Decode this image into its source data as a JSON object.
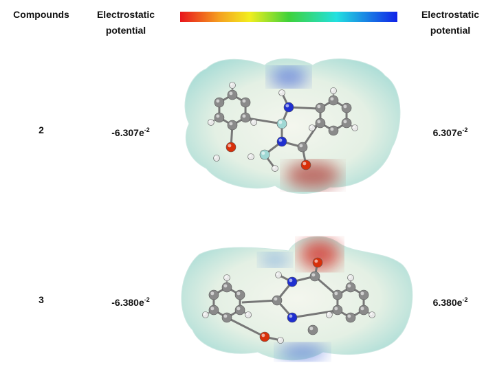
{
  "header": {
    "compounds": "Compounds",
    "left_label": "Electrostatic potential",
    "right_label": "Electrostatic potential"
  },
  "rows": [
    {
      "compound": "2",
      "min": {
        "base": "-6.307e",
        "exp": "-2"
      },
      "max": {
        "base": "6.307e",
        "exp": "-2"
      }
    },
    {
      "compound": "3",
      "min": {
        "base": "-6.380e",
        "exp": "-2"
      },
      "max": {
        "base": "6.380e",
        "exp": "-2"
      }
    }
  ]
}
